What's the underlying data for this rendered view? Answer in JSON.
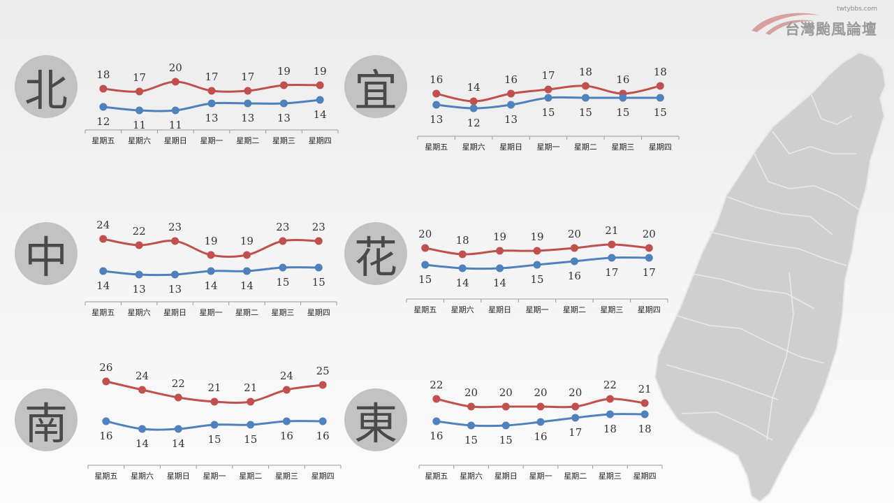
{
  "logo": {
    "url": "twtybbs.com",
    "name": "台灣颱風論壇"
  },
  "colors": {
    "high": "#c0504d",
    "low": "#4f81bd",
    "axis": "#9a9a9a",
    "badge": "#c2c2c2",
    "map": "#cfcfcf"
  },
  "days": [
    "星期五",
    "星期六",
    "星期日",
    "星期一",
    "星期二",
    "星期三",
    "星期四"
  ],
  "chart_data": [
    {
      "type": "line",
      "region": "北",
      "x": [
        "星期五",
        "星期六",
        "星期日",
        "星期一",
        "星期二",
        "星期三",
        "星期四"
      ],
      "series": [
        {
          "key": "high",
          "values": [
            18,
            17,
            20,
            17,
            17,
            19,
            19
          ]
        },
        {
          "key": "low",
          "values": [
            12,
            11,
            11,
            13,
            13,
            13,
            14
          ]
        }
      ]
    },
    {
      "type": "line",
      "region": "宜",
      "x": [
        "星期五",
        "星期六",
        "星期日",
        "星期一",
        "星期二",
        "星期三",
        "星期四"
      ],
      "series": [
        {
          "key": "high",
          "values": [
            16,
            14,
            16,
            17,
            18,
            16,
            18
          ]
        },
        {
          "key": "low",
          "values": [
            13,
            12,
            13,
            15,
            15,
            15,
            15
          ]
        }
      ]
    },
    {
      "type": "line",
      "region": "中",
      "x": [
        "星期五",
        "星期六",
        "星期日",
        "星期一",
        "星期二",
        "星期三",
        "星期四"
      ],
      "series": [
        {
          "key": "high",
          "values": [
            24,
            22,
            23,
            19,
            19,
            23,
            23
          ]
        },
        {
          "key": "low",
          "values": [
            14,
            13,
            13,
            14,
            14,
            15,
            15
          ]
        }
      ]
    },
    {
      "type": "line",
      "region": "花",
      "x": [
        "星期五",
        "星期六",
        "星期日",
        "星期一",
        "星期二",
        "星期三",
        "星期四"
      ],
      "series": [
        {
          "key": "high",
          "values": [
            20,
            18,
            19,
            19,
            20,
            21,
            20
          ]
        },
        {
          "key": "low",
          "values": [
            15,
            14,
            14,
            15,
            16,
            17,
            17
          ]
        }
      ]
    },
    {
      "type": "line",
      "region": "南",
      "x": [
        "星期五",
        "星期六",
        "星期日",
        "星期一",
        "星期二",
        "星期三",
        "星期四"
      ],
      "series": [
        {
          "key": "high",
          "values": [
            26,
            24,
            22,
            21,
            21,
            24,
            25
          ]
        },
        {
          "key": "low",
          "values": [
            16,
            14,
            14,
            15,
            15,
            16,
            16
          ]
        }
      ]
    },
    {
      "type": "line",
      "region": "東",
      "x": [
        "星期五",
        "星期六",
        "星期日",
        "星期一",
        "星期二",
        "星期三",
        "星期四"
      ],
      "series": [
        {
          "key": "high",
          "values": [
            22,
            20,
            20,
            20,
            20,
            22,
            21
          ]
        },
        {
          "key": "low",
          "values": [
            16,
            15,
            15,
            16,
            17,
            18,
            18
          ]
        }
      ]
    }
  ]
}
